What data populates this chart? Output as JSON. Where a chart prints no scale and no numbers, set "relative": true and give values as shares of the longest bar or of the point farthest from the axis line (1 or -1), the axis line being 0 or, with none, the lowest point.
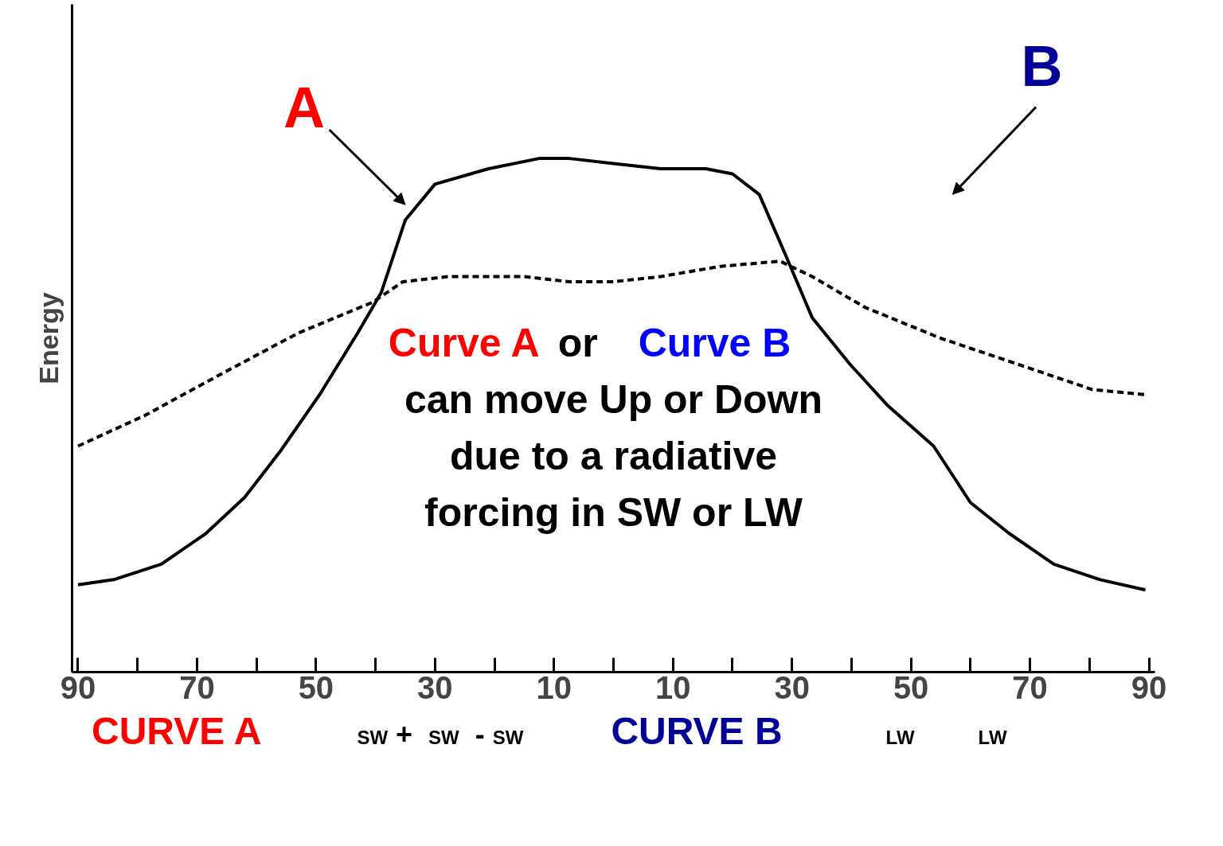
{
  "chart_data": {
    "type": "line",
    "relative": true,
    "ylabel": "Energy",
    "x": [
      -90,
      -84,
      -76,
      -68.5,
      -62,
      -56,
      -49.4,
      -43,
      -39,
      -35,
      -30,
      -21,
      -12.5,
      -7.4,
      0,
      7.9,
      15.5,
      20,
      24.5,
      29,
      33.4,
      39.7,
      46,
      53.8,
      60,
      66.5,
      74,
      81.8,
      89.4
    ],
    "series": [
      {
        "color": "#000000",
        "line_style": "solid",
        "values": [
          0.17,
          0.18,
          0.21,
          0.27,
          0.34,
          0.43,
          0.54,
          0.66,
          0.74,
          0.88,
          0.95,
          0.98,
          1.0,
          1.0,
          0.99,
          0.98,
          0.98,
          0.97,
          0.93,
          0.81,
          0.69,
          0.6,
          0.52,
          0.44,
          0.33,
          0.27,
          0.21,
          0.18,
          0.16
        ]
      },
      {
        "color": "#000000",
        "line_style": "dashed",
        "x": [
          -90,
          -78.7,
          -66,
          -53,
          -40.5,
          -35.4,
          -27.8,
          -15,
          -7.4,
          0,
          7.9,
          18,
          28,
          33.4,
          42.3,
          55,
          67.8,
          80.5,
          89.4
        ],
        "values": [
          0.44,
          0.5,
          0.58,
          0.66,
          0.72,
          0.76,
          0.77,
          0.77,
          0.76,
          0.76,
          0.77,
          0.79,
          0.8,
          0.77,
          0.71,
          0.65,
          0.6,
          0.55,
          0.54
        ]
      }
    ],
    "xlim": [
      -91,
      91
    ],
    "xticks": [
      {
        "value": -90,
        "label": "90"
      },
      {
        "value": -70,
        "label": "70"
      },
      {
        "value": -50,
        "label": "50"
      },
      {
        "value": -30,
        "label": "30"
      },
      {
        "value": -10,
        "label": "10"
      },
      {
        "value": 10,
        "label": "10"
      },
      {
        "value": 30,
        "label": "30"
      },
      {
        "value": 50,
        "label": "50"
      },
      {
        "value": 70,
        "label": "70"
      },
      {
        "value": 90,
        "label": "90"
      }
    ],
    "grid": false,
    "annotations": [
      {
        "text": "A",
        "x": -35,
        "y": 0.88
      },
      "B",
      "Curve A",
      "or",
      "Curve B",
      "can move Up or Down",
      "due to a radiative",
      "forcing in SW or LW",
      "CURVE A",
      "SW",
      "+",
      "SW",
      "-",
      "SW",
      "CURVE B",
      "LW",
      "LW"
    ]
  }
}
